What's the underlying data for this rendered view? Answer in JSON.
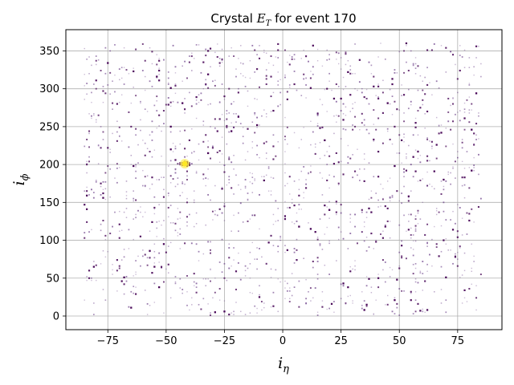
{
  "chart_data": {
    "type": "scatter",
    "title": {
      "prefix": "Crystal ",
      "symbol": "E",
      "subscript": "T",
      "suffix": " for event 170"
    },
    "xlabel": {
      "symbol": "i",
      "subscript": "η"
    },
    "ylabel": {
      "symbol": "i",
      "subscript": "ϕ"
    },
    "xlim": [
      -93,
      94
    ],
    "ylim": [
      -18,
      378
    ],
    "xticks": [
      -75,
      -50,
      -25,
      0,
      25,
      50,
      75
    ],
    "xtick_labels": [
      "−75",
      "−50",
      "−25",
      "0",
      "25",
      "50",
      "75"
    ],
    "yticks": [
      0,
      50,
      100,
      150,
      200,
      250,
      300,
      350
    ],
    "ytick_labels": [
      "0",
      "50",
      "100",
      "150",
      "200",
      "250",
      "300",
      "350"
    ],
    "grid": true,
    "colormap": "viridis",
    "colors": {
      "low": "#440154",
      "mid": "#5b2a7c",
      "high": "#fde725"
    },
    "x_range": [
      -85,
      85
    ],
    "y_range": [
      1,
      360
    ],
    "noise_points": 1650,
    "noise_value_range": [
      0,
      0.15
    ],
    "hotspot": {
      "x": -42,
      "y": 201,
      "value": 1.0
    },
    "cluster": [
      {
        "x": -43,
        "y": 202,
        "value": 0.12
      },
      {
        "x": -41,
        "y": 203,
        "value": 0.14
      },
      {
        "x": -44,
        "y": 200,
        "value": 0.1
      },
      {
        "x": -40,
        "y": 200,
        "value": 0.12
      },
      {
        "x": -42,
        "y": 204,
        "value": 0.1
      },
      {
        "x": -43,
        "y": 199,
        "value": 0.09
      },
      {
        "x": -41,
        "y": 198,
        "value": 0.1
      },
      {
        "x": -40,
        "y": 202,
        "value": 0.1
      },
      {
        "x": -44,
        "y": 202,
        "value": 0.11
      },
      {
        "x": -42,
        "y": 210,
        "value": 0.08
      },
      {
        "x": -39,
        "y": 201,
        "value": 0.08
      },
      {
        "x": -45,
        "y": 201,
        "value": 0.09
      }
    ]
  }
}
